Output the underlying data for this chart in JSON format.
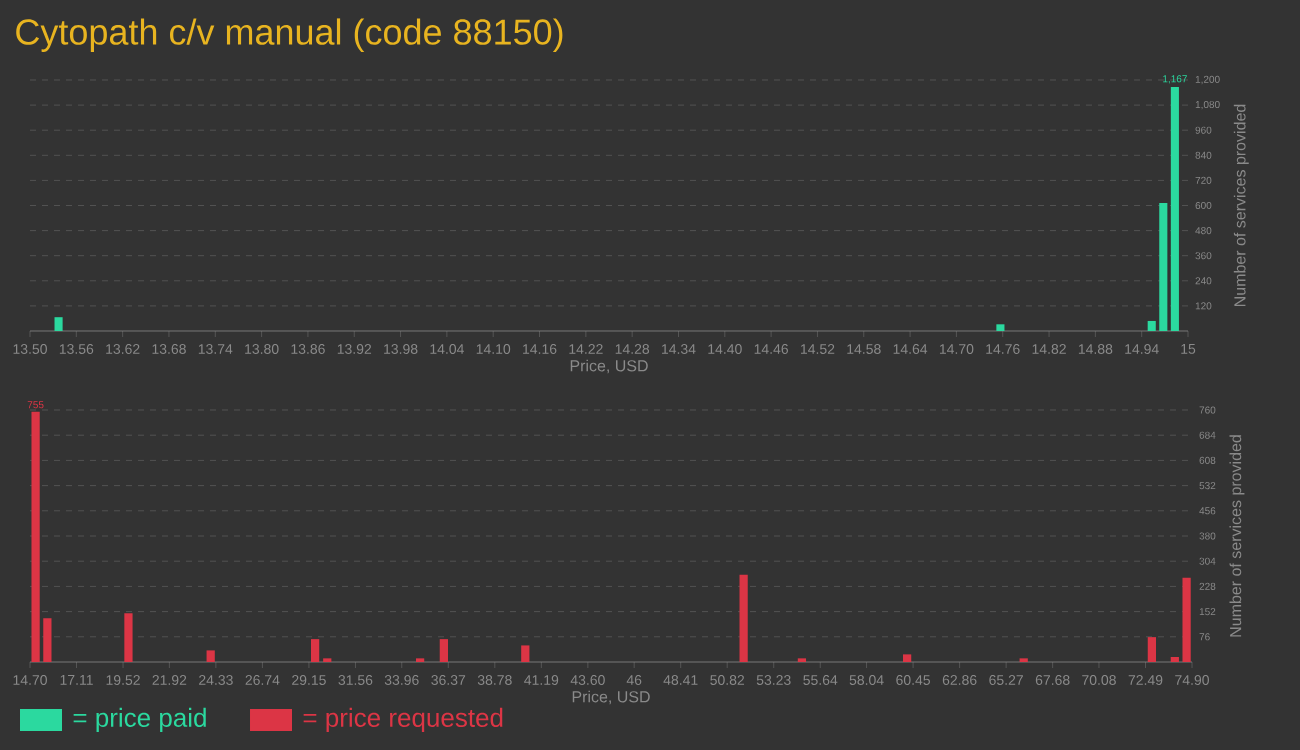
{
  "chart_data": [
    {
      "type": "bar",
      "title": "Cytopath c/v manual (code 88150)",
      "xlabel": "Price, USD",
      "ylabel": "Number of services provided",
      "x": [
        13.537,
        14.757,
        14.953,
        14.968,
        14.983
      ],
      "series": [
        {
          "name": "= price paid",
          "color": "#2bd99f",
          "values": [
            66,
            32,
            48,
            612,
            1167
          ],
          "value_labels": [
            null,
            null,
            null,
            null,
            "1,167"
          ]
        }
      ],
      "xlim": [
        13.5,
        15
      ],
      "xticks": [
        {
          "value": 13.5,
          "label": "13.50"
        },
        13.56,
        13.62,
        13.68,
        13.74,
        {
          "value": 13.8,
          "label": "13.80"
        },
        13.86,
        13.92,
        13.98,
        14.04,
        {
          "value": 14.1,
          "label": "14.10"
        },
        14.16,
        14.22,
        14.28,
        14.34,
        {
          "value": 14.4,
          "label": "14.40"
        },
        14.46,
        14.52,
        14.58,
        14.64,
        {
          "value": 14.7,
          "label": "14.70"
        },
        14.76,
        14.82,
        14.88,
        14.94,
        15
      ],
      "ylim": [
        0,
        1200
      ],
      "yticks": [
        120,
        240,
        360,
        480,
        600,
        720,
        840,
        960,
        {
          "value": 1080,
          "label": "1,080"
        },
        {
          "value": 1200,
          "label": "1,200"
        }
      ],
      "grid": "y",
      "legend": "bottom left"
    },
    {
      "type": "bar",
      "xlabel": "Price, USD",
      "ylabel": "Number of services provided",
      "x": [
        14.99,
        15.6,
        19.8,
        24.06,
        29.47,
        30.1,
        34.91,
        36.14,
        40.36,
        51.67,
        54.69,
        60.14,
        66.18,
        72.82,
        74.01,
        74.62
      ],
      "series": [
        {
          "name": "= price requested",
          "color": "#dc3545",
          "values": [
            755,
            132,
            147,
            35,
            69,
            11,
            11,
            69,
            50,
            263,
            11,
            23,
            11,
            75,
            15,
            254
          ],
          "value_labels": [
            "755",
            null,
            null,
            null,
            null,
            null,
            null,
            null,
            null,
            null,
            null,
            null,
            null,
            null,
            null,
            null
          ]
        }
      ],
      "xlim": [
        14.7,
        74.9
      ],
      "xticks": [
        {
          "value": 14.7,
          "label": "14.70"
        },
        17.11,
        19.52,
        21.92,
        24.33,
        26.74,
        29.15,
        31.56,
        33.96,
        36.37,
        38.78,
        41.19,
        {
          "value": 43.6,
          "label": "43.60"
        },
        46,
        48.41,
        50.82,
        53.23,
        55.64,
        58.04,
        60.45,
        62.86,
        65.27,
        67.68,
        70.08,
        72.49,
        {
          "value": 74.9,
          "label": "74.90"
        }
      ],
      "ylim": [
        0,
        760
      ],
      "yticks": [
        76,
        152,
        228,
        304,
        380,
        456,
        532,
        608,
        684,
        760
      ],
      "grid": "y",
      "legend": "bottom left"
    }
  ]
}
